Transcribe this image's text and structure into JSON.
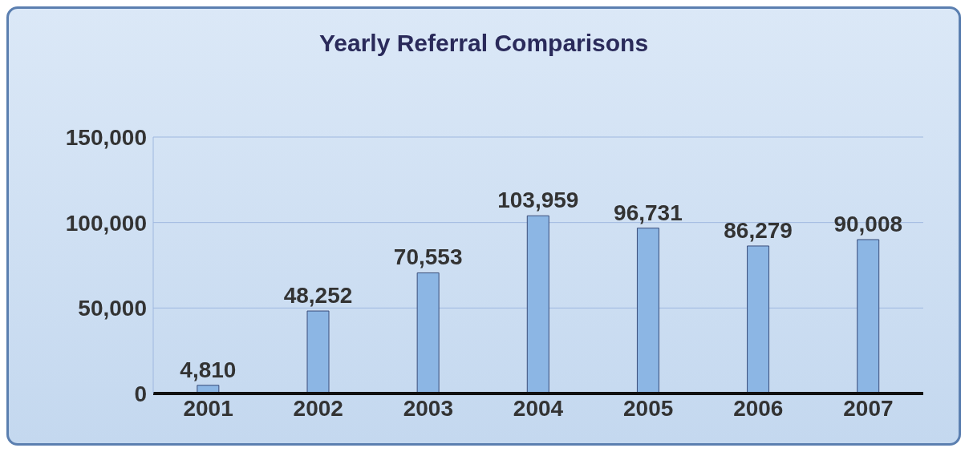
{
  "chart_data": {
    "type": "bar",
    "title": "Yearly Referral Comparisons",
    "categories": [
      "2001",
      "2002",
      "2003",
      "2004",
      "2005",
      "2006",
      "2007"
    ],
    "values": [
      4810,
      48252,
      70553,
      103959,
      96731,
      86279,
      90008
    ],
    "value_labels": [
      "4,810",
      "48,252",
      "70,553",
      "103,959",
      "96,731",
      "86,279",
      "90,008"
    ],
    "color": "#8cb6e4",
    "ylim": [
      0,
      150000
    ],
    "yticks": [
      {
        "value": 0,
        "label": "0"
      },
      {
        "value": 50000,
        "label": "50,000"
      },
      {
        "value": 100000,
        "label": "100,000"
      },
      {
        "value": 150000,
        "label": "150,000"
      }
    ],
    "grid": "y"
  }
}
